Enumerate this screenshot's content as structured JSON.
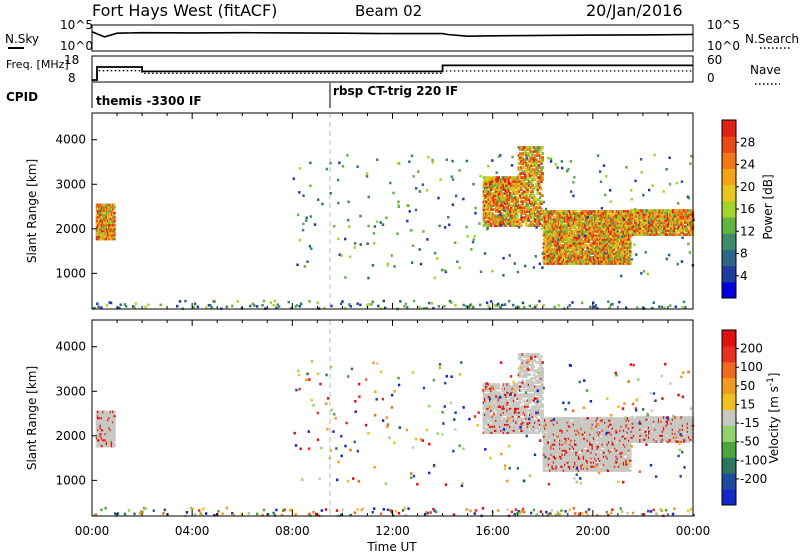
{
  "header": {
    "radar": "Fort Hays West (fitACF)",
    "beam": "Beam 02",
    "date": "20/Jan/2016"
  },
  "time_ticks": [
    "00:00",
    "04:00",
    "08:00",
    "12:00",
    "16:00",
    "20:00",
    "00:00"
  ],
  "xlabel": "Time UT",
  "cpid_label": "CPID",
  "chart_data": [
    {
      "type": "line",
      "panel": "noise",
      "left_label": "N.Sky",
      "right_label": "N.Search",
      "left_ticks": [
        "10^5",
        "10^0"
      ],
      "right_ticks": [
        "10^5",
        "10^0"
      ],
      "series": [
        {
          "name": "N.Sky",
          "style": "solid",
          "x": [
            0.0,
            0.5,
            1.0,
            2.0,
            4.0,
            6.0,
            8.0,
            10.0,
            12.0,
            14.0,
            14.2,
            15.0,
            16.0,
            18.0,
            20.0,
            22.0,
            24.0
          ],
          "y": [
            0.78,
            0.55,
            0.72,
            0.74,
            0.73,
            0.74,
            0.73,
            0.72,
            0.7,
            0.7,
            0.66,
            0.58,
            0.6,
            0.62,
            0.63,
            0.64,
            0.66
          ]
        }
      ]
    },
    {
      "type": "line",
      "panel": "frequency",
      "left_label": "Freq. [MHz]",
      "right_label": "Nave",
      "left_ticks": [
        "18",
        "8"
      ],
      "right_ticks": [
        "60",
        "0"
      ],
      "series": [
        {
          "name": "Freq.",
          "style": "solid",
          "x": [
            0.0,
            0.2,
            0.2,
            2.0,
            2.0,
            14.0,
            14.0,
            24.0
          ],
          "y": [
            8,
            8,
            14.5,
            14.5,
            12.3,
            12.3,
            15.3,
            15.3
          ]
        },
        {
          "name": "Nave",
          "style": "dotted",
          "x": [
            0.0,
            0.2,
            0.2,
            2.0,
            2.0,
            14.0,
            14.0,
            24.0
          ],
          "y": [
            0,
            0,
            28,
            28,
            20,
            20,
            27,
            27
          ]
        }
      ]
    },
    {
      "type": "table",
      "panel": "cpid",
      "segments": [
        {
          "label": "themis -3300 IF",
          "start_hour": 0.0
        },
        {
          "label": "rbsp CT-trig 220 IF",
          "start_hour": 9.5
        }
      ]
    },
    {
      "type": "heatmap",
      "panel": "power",
      "ylabel": "Slant Range [km]",
      "yticks": [
        1000,
        2000,
        3000,
        4000
      ],
      "ylim": [
        200,
        4600
      ],
      "xlim": [
        0,
        24
      ],
      "colorbar_label": "Power [dB]",
      "colorbar_ticks": [
        4,
        8,
        12,
        16,
        20,
        24,
        28
      ],
      "colorbar_range": [
        0,
        32
      ],
      "colorbar_colors": [
        "#0000dd",
        "#1e3c9e",
        "#2e6688",
        "#3e8a6a",
        "#5fb442",
        "#a6d32a",
        "#e8c81e",
        "#f5a317",
        "#f07818",
        "#e84a14",
        "#e02010"
      ],
      "regions": [
        {
          "t0": 0.15,
          "t1": 0.9,
          "r0": 1800,
          "r1": 2600,
          "density": 0.9,
          "level": 22
        },
        {
          "t0": 15.6,
          "t1": 17.0,
          "r0": 2100,
          "r1": 3200,
          "density": 0.75,
          "level": 20
        },
        {
          "t0": 17.0,
          "t1": 18.0,
          "r0": 2100,
          "r1": 3900,
          "density": 0.55,
          "level": 22
        },
        {
          "t0": 18.0,
          "t1": 21.5,
          "r0": 1250,
          "r1": 2450,
          "density": 0.85,
          "level": 24
        },
        {
          "t0": 21.5,
          "t1": 24.0,
          "r0": 1900,
          "r1": 2450,
          "density": 0.85,
          "level": 20
        }
      ]
    },
    {
      "type": "heatmap",
      "panel": "velocity",
      "ylabel": "Slant Range [km]",
      "yticks": [
        1000,
        2000,
        3000,
        4000
      ],
      "ylim": [
        200,
        4600
      ],
      "xlim": [
        0,
        24
      ],
      "colorbar_label": "Velocity [m s-1]",
      "colorbar_ticks": [
        200,
        100,
        50,
        15,
        -15,
        -50,
        -100,
        -200
      ],
      "colorbar_colors": [
        "#1428c8",
        "#1e4b9e",
        "#2e7560",
        "#4aa63c",
        "#8fd36a",
        "#c8c8c2",
        "#f0c020",
        "#f39a20",
        "#f06a1e",
        "#e63020",
        "#e01010"
      ],
      "ground_scatter_color": "#c8c8c2",
      "regions": [
        {
          "t0": 0.15,
          "t1": 0.9,
          "r0": 1800,
          "r1": 2600,
          "density": 0.9
        },
        {
          "t0": 15.6,
          "t1": 17.0,
          "r0": 2100,
          "r1": 3200,
          "density": 0.75
        },
        {
          "t0": 17.0,
          "t1": 18.0,
          "r0": 2100,
          "r1": 3900,
          "density": 0.55
        },
        {
          "t0": 18.0,
          "t1": 21.5,
          "r0": 1250,
          "r1": 2450,
          "density": 0.85
        },
        {
          "t0": 21.5,
          "t1": 24.0,
          "r0": 1900,
          "r1": 2450,
          "density": 0.85
        }
      ]
    }
  ]
}
